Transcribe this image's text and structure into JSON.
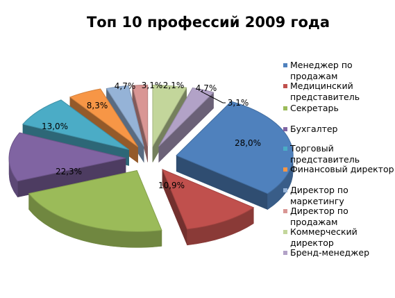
{
  "chart_data": {
    "type": "pie",
    "title": "Топ 10 профессий 2009 года",
    "legend_position": "right",
    "slices": [
      {
        "name": "Менеджер по продажам",
        "value": 28.0,
        "label": "28,0%",
        "color": "#4F81BD"
      },
      {
        "name": "Медицинский представитель",
        "value": 10.9,
        "label": "10,9%",
        "color": "#C0504D"
      },
      {
        "name": "Секретарь",
        "value": 22.3,
        "label": "22,3%",
        "color": "#9BBB59"
      },
      {
        "name": "Бухгалтер",
        "value": 13.0,
        "label": "13,0%",
        "color": "#8064A2"
      },
      {
        "name": "Торговый представитель",
        "value": 8.3,
        "label": "8,3%",
        "color": "#4BACC6"
      },
      {
        "name": "Финансовый директор",
        "value": 4.7,
        "label": "4,7%",
        "color": "#F79646"
      },
      {
        "name": "Директор по маркетингу",
        "value": 3.1,
        "label": "3,1%",
        "color": "#95B3D7"
      },
      {
        "name": "Директор по продажам",
        "value": 2.1,
        "label": "2,1%",
        "color": "#D99694"
      },
      {
        "name": "Коммерческий директор",
        "value": 4.7,
        "label": "4,7%",
        "color": "#C3D69B"
      },
      {
        "name": "Бренд-менеджер",
        "value": 3.1,
        "label": "3,1%",
        "color": "#B2A2C7"
      }
    ]
  }
}
